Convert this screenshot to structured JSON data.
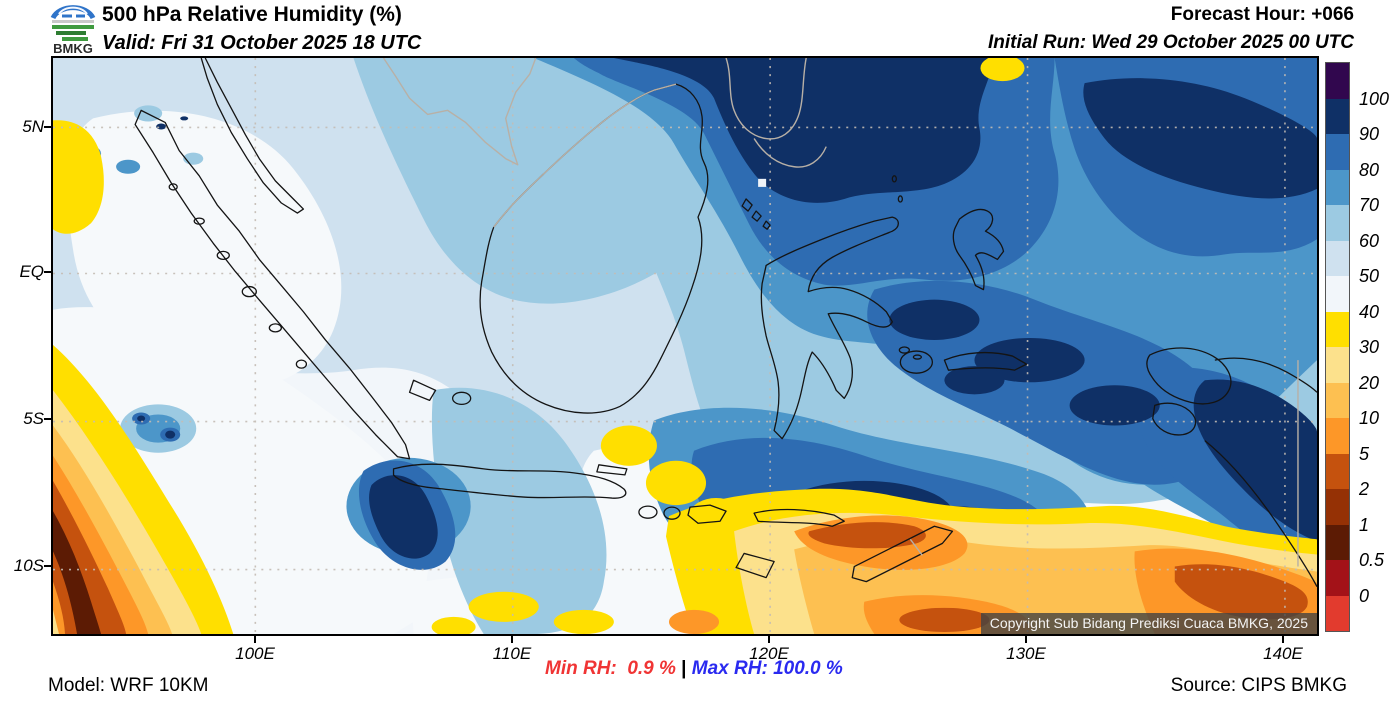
{
  "header": {
    "logo_text": "BMKG",
    "title": "500 hPa Relative Humidity (%)",
    "valid": "Valid: Fri 31 October 2025 18 UTC",
    "forecast_hour": "Forecast Hour: +066",
    "initial_run": "Initial Run: Wed 29 October 2025 00 UTC"
  },
  "map": {
    "lat_labels": [
      "5N",
      "EQ",
      "5S",
      "10S"
    ],
    "lon_labels": [
      "100E",
      "110E",
      "120E",
      "130E",
      "140E"
    ],
    "copyright": "Copyright Sub Bidang Prediksi Cuaca BMKG, 2025"
  },
  "colorbar": {
    "unit": "%",
    "labels": [
      "100",
      "90",
      "80",
      "70",
      "60",
      "50",
      "40",
      "30",
      "20",
      "10",
      "5",
      "2",
      "1",
      "0.5",
      "0"
    ],
    "colors_top_to_bottom": [
      "#31074e",
      "#0f3066",
      "#2e6cb2",
      "#4c96c9",
      "#9ccae2",
      "#cfe1ef",
      "#f2f6fa",
      "#ffdf00",
      "#fce18c",
      "#fdc051",
      "#fd9728",
      "#c5520e",
      "#953105",
      "#5c1b04",
      "#a31218",
      "#e23b2e"
    ]
  },
  "footer": {
    "model": "Model: WRF 10KM",
    "min_rh": "Min RH:  0.9 %",
    "separator": " | ",
    "max_rh": "Max RH: 100.0 %",
    "source": "Source: CIPS BMKG",
    "min_color": "#f03434",
    "max_color": "#2a2af0"
  },
  "chart_data": {
    "type": "heatmap",
    "title": "500 hPa Relative Humidity (%)",
    "variable": "Relative Humidity",
    "level_hpa": 500,
    "scale_values": [
      100,
      90,
      80,
      70,
      60,
      50,
      40,
      30,
      20,
      10,
      5,
      2,
      1,
      0.5,
      0
    ],
    "lon_ticks": [
      "100E",
      "110E",
      "120E",
      "130E",
      "140E"
    ],
    "lat_ticks": [
      "5N",
      "EQ",
      "5S",
      "10S"
    ],
    "min_rh_percent": 0.9,
    "max_rh_percent": 100.0,
    "forecast_hour": 66,
    "legend_position": "right"
  }
}
